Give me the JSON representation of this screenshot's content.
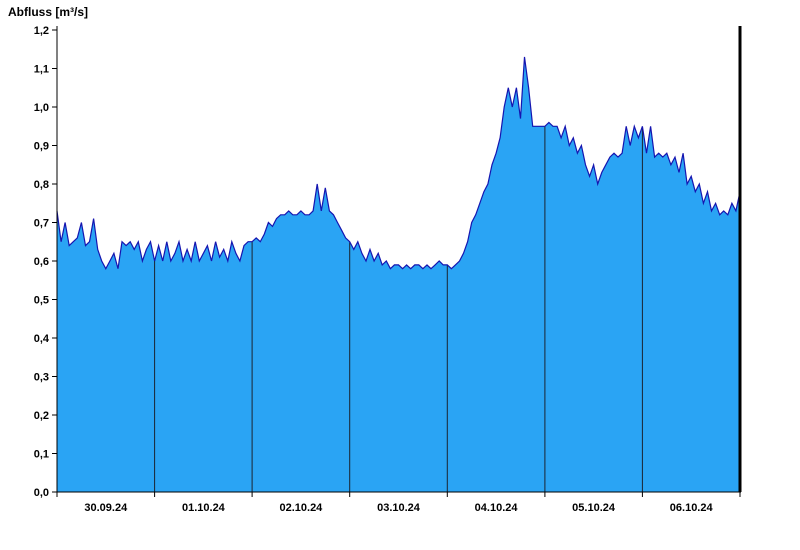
{
  "header": {
    "title": "Abfluss [m³/s]"
  },
  "chart_data": {
    "type": "area",
    "title": "Abfluss [m³/s]",
    "ylabel": "Abfluss [m³/s]",
    "xlabel": "",
    "ylim": [
      0,
      1.2
    ],
    "y_tick_step": 0.1,
    "y_tick_labels": [
      "0,0",
      "0,1",
      "0,2",
      "0,3",
      "0,4",
      "0,5",
      "0,6",
      "0,7",
      "0,8",
      "0,9",
      "1,0",
      "1,1",
      "1,2"
    ],
    "x_tick_labels": [
      "30.09.24",
      "01.10.24",
      "02.10.24",
      "03.10.24",
      "04.10.24",
      "05.10.24",
      "06.10.24"
    ],
    "points_per_day": 24,
    "grid": "vertical-day-separators",
    "legend": "none",
    "colors": {
      "fill": "#2aa4f4",
      "line": "#1515b0",
      "axis": "#000000",
      "separator": "#1a2430",
      "background": "#ffffff"
    },
    "series": [
      {
        "name": "Abfluss",
        "unit": "m³/s",
        "values": [
          0.73,
          0.65,
          0.7,
          0.64,
          0.65,
          0.66,
          0.7,
          0.64,
          0.65,
          0.71,
          0.63,
          0.6,
          0.58,
          0.6,
          0.62,
          0.58,
          0.65,
          0.64,
          0.65,
          0.63,
          0.65,
          0.6,
          0.63,
          0.65,
          0.6,
          0.64,
          0.6,
          0.65,
          0.6,
          0.62,
          0.65,
          0.6,
          0.63,
          0.6,
          0.65,
          0.6,
          0.62,
          0.64,
          0.6,
          0.65,
          0.61,
          0.63,
          0.6,
          0.65,
          0.62,
          0.6,
          0.64,
          0.65,
          0.65,
          0.66,
          0.65,
          0.67,
          0.7,
          0.69,
          0.71,
          0.72,
          0.72,
          0.73,
          0.72,
          0.72,
          0.73,
          0.72,
          0.72,
          0.73,
          0.8,
          0.73,
          0.79,
          0.73,
          0.72,
          0.7,
          0.68,
          0.66,
          0.65,
          0.63,
          0.65,
          0.62,
          0.6,
          0.63,
          0.6,
          0.62,
          0.59,
          0.6,
          0.58,
          0.59,
          0.59,
          0.58,
          0.59,
          0.58,
          0.59,
          0.59,
          0.58,
          0.59,
          0.58,
          0.59,
          0.6,
          0.59,
          0.59,
          0.58,
          0.59,
          0.6,
          0.62,
          0.65,
          0.7,
          0.72,
          0.75,
          0.78,
          0.8,
          0.85,
          0.88,
          0.92,
          1.0,
          1.05,
          1.0,
          1.05,
          0.97,
          1.13,
          1.05,
          0.95,
          0.95,
          0.95,
          0.95,
          0.96,
          0.95,
          0.95,
          0.92,
          0.95,
          0.9,
          0.92,
          0.88,
          0.9,
          0.85,
          0.82,
          0.85,
          0.8,
          0.83,
          0.85,
          0.87,
          0.88,
          0.87,
          0.88,
          0.95,
          0.9,
          0.95,
          0.92,
          0.95,
          0.88,
          0.95,
          0.87,
          0.88,
          0.87,
          0.88,
          0.85,
          0.87,
          0.83,
          0.88,
          0.8,
          0.82,
          0.78,
          0.8,
          0.75,
          0.78,
          0.73,
          0.75,
          0.72,
          0.73,
          0.72,
          0.75,
          0.73,
          0.78
        ]
      }
    ]
  }
}
